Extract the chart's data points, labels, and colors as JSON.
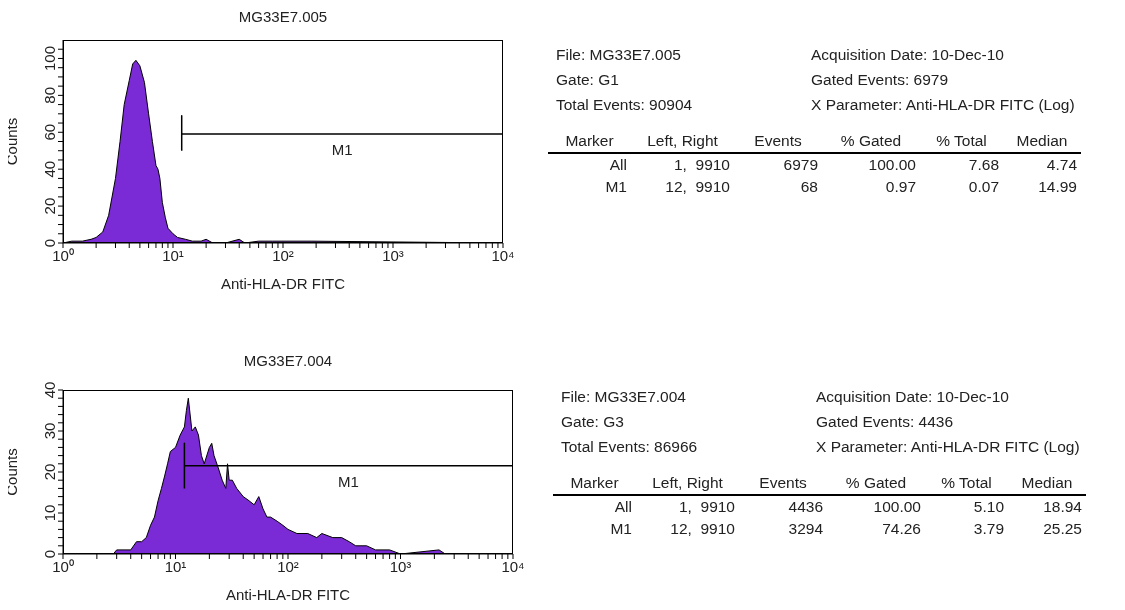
{
  "chart_data": [
    {
      "type": "area",
      "title": "MG33E7.005",
      "xlabel": "Anti-HLA-DR FITC",
      "ylabel": "Counts",
      "log": "x",
      "xlim": [
        1,
        10000
      ],
      "xticks": [
        {
          "value": 1,
          "label": "10⁰"
        },
        {
          "value": 2,
          "label": null
        },
        {
          "value": 3,
          "label": null
        },
        {
          "value": 4,
          "label": null
        },
        {
          "value": 5,
          "label": null
        },
        {
          "value": 6,
          "label": null
        },
        {
          "value": 7,
          "label": null
        },
        {
          "value": 8,
          "label": null
        },
        {
          "value": 9,
          "label": null
        },
        {
          "value": 10,
          "label": "10¹"
        },
        {
          "value": 20,
          "label": null
        },
        {
          "value": 30,
          "label": null
        },
        {
          "value": 40,
          "label": null
        },
        {
          "value": 50,
          "label": null
        },
        {
          "value": 60,
          "label": null
        },
        {
          "value": 70,
          "label": null
        },
        {
          "value": 80,
          "label": null
        },
        {
          "value": 90,
          "label": null
        },
        {
          "value": 100,
          "label": "10²"
        },
        {
          "value": 200,
          "label": null
        },
        {
          "value": 300,
          "label": null
        },
        {
          "value": 400,
          "label": null
        },
        {
          "value": 500,
          "label": null
        },
        {
          "value": 600,
          "label": null
        },
        {
          "value": 700,
          "label": null
        },
        {
          "value": 800,
          "label": null
        },
        {
          "value": 900,
          "label": null
        },
        {
          "value": 1000,
          "label": "10³"
        },
        {
          "value": 2000,
          "label": null
        },
        {
          "value": 3000,
          "label": null
        },
        {
          "value": 4000,
          "label": null
        },
        {
          "value": 5000,
          "label": null
        },
        {
          "value": 6000,
          "label": null
        },
        {
          "value": 7000,
          "label": null
        },
        {
          "value": 8000,
          "label": null
        },
        {
          "value": 9000,
          "label": null
        },
        {
          "value": 10000,
          "label": "10⁴"
        }
      ],
      "ylim": [
        0,
        110
      ],
      "yticks": [
        0,
        {
          "value": 5,
          "label": null
        },
        {
          "value": 10,
          "label": null
        },
        {
          "value": 15,
          "label": null
        },
        20,
        {
          "value": 25,
          "label": null
        },
        {
          "value": 30,
          "label": null
        },
        {
          "value": 35,
          "label": null
        },
        40,
        {
          "value": 45,
          "label": null
        },
        {
          "value": 50,
          "label": null
        },
        {
          "value": 55,
          "label": null
        },
        60,
        {
          "value": 65,
          "label": null
        },
        {
          "value": 70,
          "label": null
        },
        {
          "value": 75,
          "label": null
        },
        80,
        {
          "value": 85,
          "label": null
        },
        {
          "value": 90,
          "label": null
        },
        {
          "value": 95,
          "label": null
        },
        100,
        {
          "value": 105,
          "label": null
        }
      ],
      "series": [
        {
          "color": "#7b2bd6",
          "x": [
            1,
            1.2,
            1.5,
            1.8,
            2,
            2.3,
            2.6,
            3,
            3.3,
            3.6,
            4,
            4.3,
            4.6,
            5,
            5.5,
            6,
            6.5,
            7,
            7.3,
            7.6,
            8,
            8.5,
            9,
            10,
            11,
            13,
            15,
            18,
            20,
            23,
            30,
            40,
            45,
            60,
            80,
            180,
            10000
          ],
          "values": [
            0,
            1,
            1,
            2,
            3,
            6,
            15,
            35,
            55,
            75,
            88,
            97,
            99,
            96,
            87,
            70,
            55,
            42,
            40,
            35,
            22,
            14,
            8,
            5,
            3,
            2,
            1,
            1,
            2,
            0,
            0,
            2,
            0,
            1,
            1,
            1,
            0
          ]
        },
        {
          "type": "line",
          "name": "M1",
          "color": "#000000",
          "x": [
            12,
            12,
            12,
            9910
          ],
          "values": [
            50,
            69,
            59,
            59
          ]
        }
      ]
    },
    {
      "type": "other",
      "annotations": [
        "File: MG33E7.005",
        "Acquisition Date: 10-Dec-10",
        "Gate: G1",
        "Gated Events: 6979",
        "Total Events: 90904",
        "X Parameter: Anti-HLA-DR FITC (Log)",
        "Marker",
        "Left, Right",
        "Events",
        "% Gated",
        "% Total",
        "Median",
        "All",
        "1,  9910",
        "6979",
        "100.00",
        "7.68",
        "4.74",
        "M1",
        "12,  9910",
        "68",
        "0.97",
        "0.07",
        "14.99"
      ]
    },
    {
      "type": "area",
      "title": "MG33E7.004",
      "xlabel": "Anti-HLA-DR FITC",
      "ylabel": "Counts",
      "log": "x",
      "xlim": [
        1,
        10000
      ],
      "xticks": [
        {
          "value": 1,
          "label": "10⁰"
        },
        {
          "value": 2,
          "label": null
        },
        {
          "value": 3,
          "label": null
        },
        {
          "value": 4,
          "label": null
        },
        {
          "value": 5,
          "label": null
        },
        {
          "value": 6,
          "label": null
        },
        {
          "value": 7,
          "label": null
        },
        {
          "value": 8,
          "label": null
        },
        {
          "value": 9,
          "label": null
        },
        {
          "value": 10,
          "label": "10¹"
        },
        {
          "value": 20,
          "label": null
        },
        {
          "value": 30,
          "label": null
        },
        {
          "value": 40,
          "label": null
        },
        {
          "value": 50,
          "label": null
        },
        {
          "value": 60,
          "label": null
        },
        {
          "value": 70,
          "label": null
        },
        {
          "value": 80,
          "label": null
        },
        {
          "value": 90,
          "label": null
        },
        {
          "value": 100,
          "label": "10²"
        },
        {
          "value": 200,
          "label": null
        },
        {
          "value": 300,
          "label": null
        },
        {
          "value": 400,
          "label": null
        },
        {
          "value": 500,
          "label": null
        },
        {
          "value": 600,
          "label": null
        },
        {
          "value": 700,
          "label": null
        },
        {
          "value": 800,
          "label": null
        },
        {
          "value": 900,
          "label": null
        },
        {
          "value": 1000,
          "label": "10³"
        },
        {
          "value": 2000,
          "label": null
        },
        {
          "value": 3000,
          "label": null
        },
        {
          "value": 4000,
          "label": null
        },
        {
          "value": 5000,
          "label": null
        },
        {
          "value": 6000,
          "label": null
        },
        {
          "value": 7000,
          "label": null
        },
        {
          "value": 8000,
          "label": null
        },
        {
          "value": 9000,
          "label": null
        },
        {
          "value": 10000,
          "label": "10⁴"
        }
      ],
      "ylim": [
        0,
        40
      ],
      "yticks": [
        0,
        {
          "value": 2,
          "label": null
        },
        {
          "value": 4,
          "label": null
        },
        {
          "value": 6,
          "label": null
        },
        {
          "value": 8,
          "label": null
        },
        10,
        {
          "value": 12,
          "label": null
        },
        {
          "value": 14,
          "label": null
        },
        {
          "value": 16,
          "label": null
        },
        {
          "value": 18,
          "label": null
        },
        20,
        {
          "value": 22,
          "label": null
        },
        {
          "value": 24,
          "label": null
        },
        {
          "value": 26,
          "label": null
        },
        {
          "value": 28,
          "label": null
        },
        30,
        {
          "value": 32,
          "label": null
        },
        {
          "value": 34,
          "label": null
        },
        {
          "value": 36,
          "label": null
        },
        {
          "value": 38,
          "label": null
        },
        40
      ],
      "series": [
        {
          "color": "#7b2bd6",
          "x": [
            1,
            2.8,
            3,
            4,
            4.5,
            5,
            5.5,
            6,
            6.5,
            7,
            7.5,
            8,
            8.5,
            9,
            10,
            11,
            12,
            12.5,
            13,
            14,
            15,
            16,
            17,
            18,
            20,
            21,
            22,
            24,
            26,
            28,
            29,
            30,
            32,
            35,
            40,
            45,
            50,
            55,
            60,
            65,
            70,
            80,
            90,
            100,
            120,
            150,
            180,
            200,
            250,
            300,
            350,
            400,
            500,
            600,
            800,
            1000,
            2200,
            2500,
            10000
          ],
          "values": [
            0,
            0,
            1,
            1,
            3,
            3,
            4,
            7,
            9,
            13,
            16,
            19,
            22,
            25,
            26,
            29,
            31,
            35,
            38,
            30,
            31,
            29,
            24,
            22,
            26,
            27,
            24,
            21,
            18,
            16,
            22,
            18,
            18,
            16,
            14,
            13,
            12,
            14,
            11,
            9,
            9,
            8,
            7,
            6,
            5,
            5,
            4,
            5,
            4,
            4,
            3,
            2,
            2,
            1,
            1,
            0,
            1,
            0,
            0
          ]
        },
        {
          "type": "line",
          "name": "M1",
          "color": "#000000",
          "x": [
            12,
            12,
            12,
            9910
          ],
          "values": [
            16,
            27,
            21.5,
            21.5
          ]
        }
      ]
    },
    {
      "type": "other",
      "annotations": [
        "File: MG33E7.004",
        "Acquisition Date: 10-Dec-10",
        "Gate: G3",
        "Gated Events: 4436",
        "Total Events: 86966",
        "X Parameter: Anti-HLA-DR FITC (Log)",
        "Marker",
        "Left, Right",
        "Events",
        "% Gated",
        "% Total",
        "Median",
        "All",
        "1,  9910",
        "4436",
        "100.00",
        "5.10",
        "18.94",
        "M1",
        "12,  9910",
        "3294",
        "74.26",
        "3.79",
        "25.25"
      ]
    }
  ]
}
